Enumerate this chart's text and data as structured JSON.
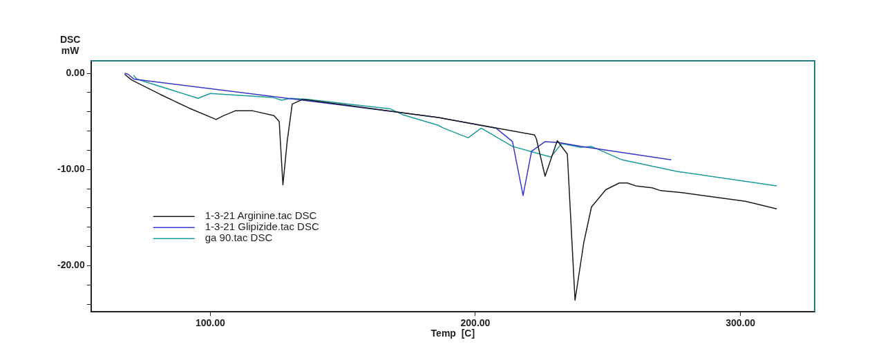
{
  "chart_data": {
    "type": "line",
    "xlabel": "Temp  [C]",
    "ylabel": "DSC\nmW",
    "xlim": [
      55,
      328
    ],
    "xticks": [
      {
        "value": 100,
        "label": "100.00"
      },
      {
        "value": 200,
        "label": "200.00"
      },
      {
        "value": 300,
        "label": "300.00"
      }
    ],
    "ylim": [
      -24.8,
      1.3
    ],
    "yticks": [
      {
        "value": 0,
        "label": "0.00"
      },
      {
        "value": -2,
        "label": null
      },
      {
        "value": -4,
        "label": null
      },
      {
        "value": -6,
        "label": null
      },
      {
        "value": -8,
        "label": null
      },
      {
        "value": -10,
        "label": "-10.00"
      },
      {
        "value": -12,
        "label": null
      },
      {
        "value": -14,
        "label": null
      },
      {
        "value": -16,
        "label": null
      },
      {
        "value": -18,
        "label": null
      },
      {
        "value": -20,
        "label": "-20.00"
      },
      {
        "value": -22,
        "label": null
      },
      {
        "value": -24,
        "label": null
      }
    ],
    "grid": false,
    "legend": "left",
    "marker": "none",
    "line_style": "solid",
    "series": [
      {
        "name": "1-3-21 Arginine.tac DSC",
        "color": "#1a1a1a",
        "x": [
          67.7,
          70.4,
          81.2,
          91.9,
          102.2,
          105,
          109.4,
          116,
          124,
          126,
          127.4,
          129,
          130.9,
          134.9,
          145.7,
          172.6,
          186,
          222.3,
          223,
          226.3,
          230.9,
          234.7,
          237.6,
          240.9,
          243.8,
          249.2,
          254.3,
          257.3,
          260.5,
          266.7,
          269.9,
          278,
          288.4,
          301.9,
          313.7
        ],
        "values": [
          -0.1,
          -0.7,
          -2.2,
          -3.6,
          -4.8,
          -4.4,
          -3.9,
          -3.9,
          -4.4,
          -5.0,
          -11.6,
          -7.1,
          -3.2,
          -2.7,
          -3.1,
          -4.1,
          -4.6,
          -6.4,
          -6.8,
          -10.7,
          -7.0,
          -8.4,
          -23.6,
          -17.6,
          -13.9,
          -12.1,
          -11.4,
          -11.4,
          -11.7,
          -11.9,
          -12.2,
          -12.4,
          -12.8,
          -13.3,
          -14.1
        ]
      },
      {
        "name": "1-3-21 Glipizide.tac DSC",
        "color": "#3535c8",
        "x": [
          67.7,
          69,
          71.2,
          172.6,
          186,
          207.8,
          214,
          218,
          221.2,
          226.3,
          231.5,
          239.8,
          273.9
        ],
        "values": [
          0,
          -0.1,
          -0.6,
          -4.1,
          -4.6,
          -5.7,
          -7.1,
          -12.7,
          -8.1,
          -7.1,
          -7.2,
          -7.6,
          -9.0
        ]
      },
      {
        "name": "ga 90.tac DSC",
        "color": "#1a9a9a",
        "x": [
          71,
          72.3,
          95.4,
          100,
          123.4,
          126.9,
          130.4,
          136.8,
          168,
          172.6,
          186,
          188,
          197.3,
          202.2,
          214,
          228.5,
          232.5,
          239.8,
          243.8,
          255.4,
          276,
          313.7
        ],
        "values": [
          -0.2,
          -0.6,
          -2.6,
          -2.1,
          -2.5,
          -2.8,
          -2.6,
          -2.7,
          -3.7,
          -4.3,
          -5.4,
          -5.7,
          -6.7,
          -5.7,
          -7.6,
          -8.7,
          -7.3,
          -7.7,
          -7.6,
          -9.0,
          -10.2,
          -11.7
        ]
      }
    ]
  }
}
